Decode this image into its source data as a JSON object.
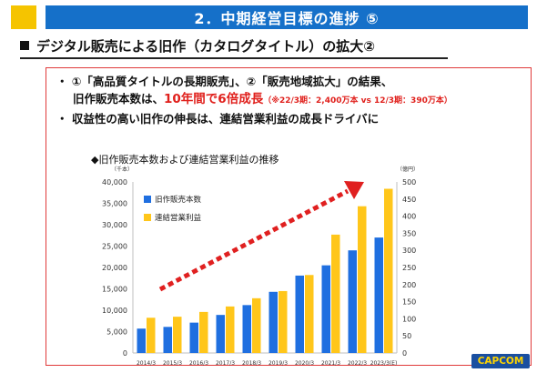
{
  "header": {
    "title": "2．中期経営目標の進捗 ⑤"
  },
  "subheading": {
    "text": "デジタル販売による旧作（カタログタイトル）の拡大②"
  },
  "bullets": {
    "b1_line1": "・ ①「高品質タイトルの長期販売」、②「販売地域拡大」の結果、",
    "b1_line2_prefix": "旧作販売本数は、",
    "b1_line2_highlight": "10年間で6倍成長",
    "b1_line2_note": "（※22/3期：2,400万本 vs 12/3期：390万本）",
    "b2": "・ 収益性の高い旧作の伸長は、連結営業利益の成長ドライバに"
  },
  "chart_title": "◆旧作販売本数および連結営業利益の推移",
  "logo": {
    "text": "CAPCOM"
  },
  "colors": {
    "header": "#1570c9",
    "accent": "#f5c400",
    "units_bar": "#1f6fe0",
    "profit_bar": "#ffc61a",
    "arrow": "#e02020"
  },
  "chart_data": {
    "type": "bar",
    "categories": [
      "2014/3",
      "2015/3",
      "2016/3",
      "2017/3",
      "2018/3",
      "2019/3",
      "2020/3",
      "2021/3",
      "2022/3",
      "2023/3(E)"
    ],
    "series": [
      {
        "name": "旧作販売本数",
        "axis": "left",
        "unit": "千本",
        "values": [
          5700,
          6100,
          7100,
          8900,
          11200,
          14300,
          18100,
          20500,
          24000,
          27000
        ]
      },
      {
        "name": "連結営業利益",
        "axis": "right",
        "unit": "億円",
        "values": [
          103,
          106,
          120,
          136,
          160,
          181,
          228,
          346,
          429,
          480
        ]
      }
    ],
    "y_left": {
      "label": "（千本）",
      "min": 0,
      "max": 40000,
      "step": 5000,
      "ticks": [
        "0",
        "5,000",
        "10,000",
        "15,000",
        "20,000",
        "25,000",
        "30,000",
        "35,000",
        "40,000"
      ]
    },
    "y_right": {
      "label": "（億円）",
      "min": 0,
      "max": 500,
      "step": 50,
      "ticks": [
        "0",
        "50",
        "100",
        "150",
        "200",
        "250",
        "300",
        "350",
        "400",
        "450",
        "500"
      ]
    },
    "legend_position": "top-left",
    "grid": false,
    "annotation": "upward-trend-arrow"
  }
}
